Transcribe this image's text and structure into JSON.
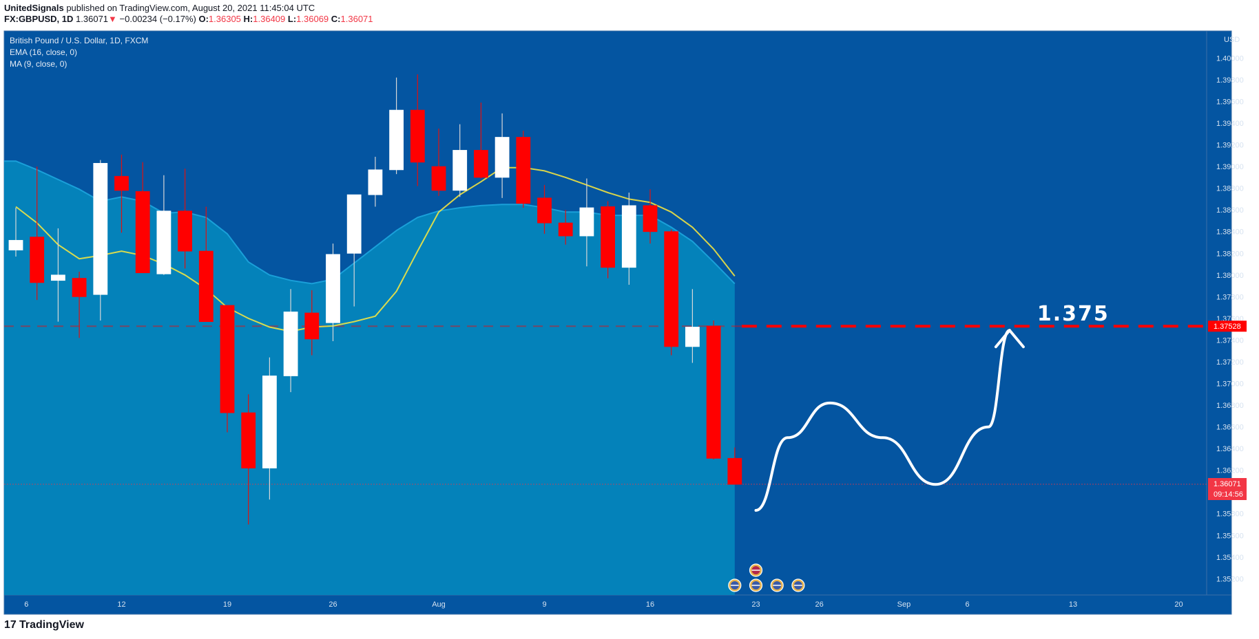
{
  "header": {
    "publisher": "UnitedSignals",
    "published_text": "published on TradingView.com, August 20, 2021 11:45:04 UTC",
    "symbol": "FX:GBPUSD, 1D",
    "price": "1.36071",
    "change_arrow": "▼",
    "change": "−0.00234 (−0.17%)",
    "o_label": "O:",
    "o": "1.36305",
    "h_label": "H:",
    "h": "1.36409",
    "l_label": "L:",
    "l": "1.36069",
    "c_label": "C:",
    "c": "1.36071"
  },
  "legend": {
    "title": "British Pound / U.S. Dollar, 1D, FXCM",
    "ema": "EMA (16, close, 0)",
    "ma": "MA (9, close, 0)"
  },
  "footer": {
    "brand": "TradingView"
  },
  "colors": {
    "background": "#0455a1",
    "area": "#0482ba",
    "bull": "#ffffff",
    "bear": "#ff0000",
    "ma": "#ffeb3b",
    "ema_area_line": "#1aa0d9",
    "level": "#ff0000"
  },
  "chart_data": {
    "type": "candlestick",
    "symbol": "British Pound / U.S. Dollar",
    "interval": "1D",
    "currency_label": "USD",
    "ylim": [
      1.3505,
      1.4025
    ],
    "y_ticks": [
      1.352,
      1.354,
      1.356,
      1.358,
      1.36,
      1.362,
      1.364,
      1.366,
      1.368,
      1.37,
      1.372,
      1.374,
      1.376,
      1.378,
      1.38,
      1.382,
      1.384,
      1.386,
      1.388,
      1.39,
      1.392,
      1.394,
      1.396,
      1.398,
      1.4
    ],
    "x_ticks": [
      {
        "label": "6",
        "index": 0.5
      },
      {
        "label": "12",
        "index": 5
      },
      {
        "label": "19",
        "index": 10
      },
      {
        "label": "26",
        "index": 15
      },
      {
        "label": "Aug",
        "index": 20
      },
      {
        "label": "9",
        "index": 25
      },
      {
        "label": "16",
        "index": 30
      },
      {
        "label": "23",
        "index": 35
      },
      {
        "label": "26",
        "index": 38
      },
      {
        "label": "Sep",
        "index": 42
      },
      {
        "label": "6",
        "index": 45
      },
      {
        "label": "13",
        "index": 50
      },
      {
        "label": "20",
        "index": 55
      }
    ],
    "candles": [
      {
        "o": 1.3823,
        "h": 1.3862,
        "l": 1.3817,
        "c": 1.3832
      },
      {
        "o": 1.3835,
        "h": 1.39,
        "l": 1.3777,
        "c": 1.3793
      },
      {
        "o": 1.3795,
        "h": 1.3843,
        "l": 1.3757,
        "c": 1.38
      },
      {
        "o": 1.3797,
        "h": 1.3803,
        "l": 1.3742,
        "c": 1.378
      },
      {
        "o": 1.3782,
        "h": 1.3906,
        "l": 1.3758,
        "c": 1.3903
      },
      {
        "o": 1.3891,
        "h": 1.3911,
        "l": 1.3839,
        "c": 1.3878
      },
      {
        "o": 1.3877,
        "h": 1.3904,
        "l": 1.3803,
        "c": 1.3802
      },
      {
        "o": 1.3801,
        "h": 1.3892,
        "l": 1.38,
        "c": 1.3859
      },
      {
        "o": 1.3859,
        "h": 1.3898,
        "l": 1.3806,
        "c": 1.3822
      },
      {
        "o": 1.3822,
        "h": 1.3863,
        "l": 1.3757,
        "c": 1.3757
      },
      {
        "o": 1.3772,
        "h": 1.3772,
        "l": 1.3655,
        "c": 1.3673
      },
      {
        "o": 1.3673,
        "h": 1.369,
        "l": 1.357,
        "c": 1.3622
      },
      {
        "o": 1.3622,
        "h": 1.3724,
        "l": 1.3593,
        "c": 1.3707
      },
      {
        "o": 1.3707,
        "h": 1.3787,
        "l": 1.3692,
        "c": 1.3766
      },
      {
        "o": 1.3765,
        "h": 1.3786,
        "l": 1.3726,
        "c": 1.3741
      },
      {
        "o": 1.3756,
        "h": 1.3829,
        "l": 1.3739,
        "c": 1.3819
      },
      {
        "o": 1.382,
        "h": 1.3873,
        "l": 1.3771,
        "c": 1.3874
      },
      {
        "o": 1.3874,
        "h": 1.3909,
        "l": 1.3863,
        "c": 1.3897
      },
      {
        "o": 1.3897,
        "h": 1.3982,
        "l": 1.3893,
        "c": 1.3952
      },
      {
        "o": 1.3952,
        "h": 1.3985,
        "l": 1.3882,
        "c": 1.3904
      },
      {
        "o": 1.39,
        "h": 1.3935,
        "l": 1.3873,
        "c": 1.3878
      },
      {
        "o": 1.3878,
        "h": 1.3939,
        "l": 1.3872,
        "c": 1.3915
      },
      {
        "o": 1.3915,
        "h": 1.3959,
        "l": 1.3889,
        "c": 1.389
      },
      {
        "o": 1.389,
        "h": 1.3949,
        "l": 1.3871,
        "c": 1.3927
      },
      {
        "o": 1.3927,
        "h": 1.3933,
        "l": 1.3862,
        "c": 1.3866
      },
      {
        "o": 1.3871,
        "h": 1.3883,
        "l": 1.3838,
        "c": 1.3848
      },
      {
        "o": 1.3848,
        "h": 1.386,
        "l": 1.3828,
        "c": 1.3836
      },
      {
        "o": 1.3836,
        "h": 1.3889,
        "l": 1.3808,
        "c": 1.3862
      },
      {
        "o": 1.3863,
        "h": 1.3868,
        "l": 1.3797,
        "c": 1.3807
      },
      {
        "o": 1.3807,
        "h": 1.3876,
        "l": 1.3791,
        "c": 1.3864
      },
      {
        "o": 1.3864,
        "h": 1.3879,
        "l": 1.3829,
        "c": 1.384
      },
      {
        "o": 1.384,
        "h": 1.3842,
        "l": 1.3726,
        "c": 1.3734
      },
      {
        "o": 1.3734,
        "h": 1.3787,
        "l": 1.3719,
        "c": 1.3752
      },
      {
        "o": 1.3753,
        "h": 1.3758,
        "l": 1.363,
        "c": 1.3631
      },
      {
        "o": 1.3631,
        "h": 1.3641,
        "l": 1.3607,
        "c": 1.3607
      }
    ],
    "ma_9": [
      1.3863,
      1.3848,
      1.3828,
      1.3815,
      1.3818,
      1.3822,
      1.3818,
      1.381,
      1.38,
      1.3787,
      1.377,
      1.376,
      1.3752,
      1.3748,
      1.3752,
      1.3753,
      1.3757,
      1.3762,
      1.3785,
      1.3822,
      1.3858,
      1.3874,
      1.3886,
      1.3899,
      1.3899,
      1.3896,
      1.389,
      1.3883,
      1.3876,
      1.387,
      1.3867,
      1.3858,
      1.3844,
      1.3824,
      1.3799
    ],
    "ema_16": [
      1.3905,
      1.3897,
      1.3888,
      1.3879,
      1.3868,
      1.3872,
      1.3868,
      1.3857,
      1.3858,
      1.3853,
      1.3838,
      1.3812,
      1.38,
      1.3795,
      1.3792,
      1.3796,
      1.3811,
      1.3826,
      1.3841,
      1.3853,
      1.3859,
      1.3862,
      1.3864,
      1.3865,
      1.3865,
      1.3862,
      1.3858,
      1.3858,
      1.3855,
      1.3855,
      1.3855,
      1.3844,
      1.3831,
      1.3812,
      1.3792
    ],
    "level": {
      "value": 1.37528,
      "label": "1.375",
      "axis_label": "1.37528"
    },
    "current": {
      "value": 1.36071,
      "axis_label": "1.36071",
      "countdown": "09:14:56"
    },
    "projection": [
      {
        "index": 35.0,
        "y": 1.3583
      },
      {
        "index": 36.5,
        "y": 1.365
      },
      {
        "index": 38.5,
        "y": 1.3682
      },
      {
        "index": 41.0,
        "y": 1.365
      },
      {
        "index": 43.5,
        "y": 1.3607
      },
      {
        "index": 46.0,
        "y": 1.366
      },
      {
        "index": 47.0,
        "y": 1.3749
      }
    ]
  }
}
